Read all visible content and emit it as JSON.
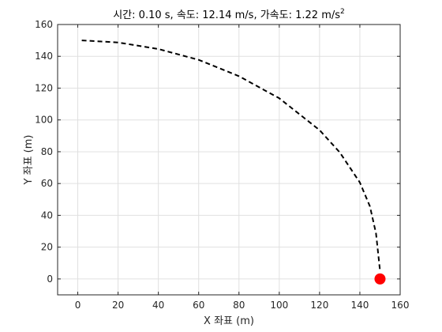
{
  "chart_data": {
    "type": "line",
    "title": {
      "time_label": "시간:",
      "time_value": "0.10",
      "time_unit": "s,",
      "speed_label": "속도:",
      "speed_value": "12.14",
      "speed_unit": "m/s,",
      "accel_label": "가속도:",
      "accel_value": "1.22",
      "accel_unit": "m/s",
      "accel_exp": "2"
    },
    "xlabel": "X 좌표 (m)",
    "ylabel": "Y 좌표 (m)",
    "xlim": [
      -10,
      160
    ],
    "ylim": [
      -10,
      160
    ],
    "xticks": [
      0,
      20,
      40,
      60,
      80,
      100,
      120,
      140,
      160
    ],
    "yticks": [
      0,
      20,
      40,
      60,
      80,
      100,
      120,
      140,
      160
    ],
    "grid": true,
    "series": [
      {
        "style": "dashed",
        "color": "#000000",
        "x": [
          2,
          20,
          40,
          60,
          80,
          100,
          120,
          130,
          140,
          145,
          148,
          150
        ],
        "y": [
          150,
          148.7,
          144.6,
          137.8,
          127.5,
          113.6,
          93.6,
          79.6,
          60.7,
          45.6,
          28.6,
          5
        ]
      }
    ],
    "marker": {
      "x": 150,
      "y": 0,
      "color": "#ff0000"
    }
  }
}
